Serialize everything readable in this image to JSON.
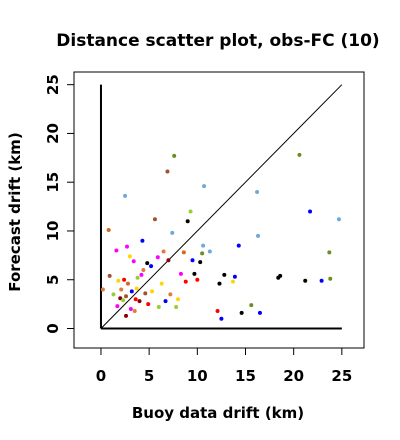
{
  "chart_data": {
    "type": "scatter",
    "title": "Distance scatter plot, obs-FC (10)",
    "xlabel": "Buoy data drift (km)",
    "ylabel": "Forecast drift (km)",
    "xlim": [
      -2.8,
      27.3
    ],
    "ylim": [
      -2.0,
      26.3
    ],
    "xticks": [
      0,
      5,
      10,
      15,
      20,
      25
    ],
    "yticks": [
      0,
      5,
      10,
      15,
      20,
      25
    ],
    "grid": false,
    "legend": "none",
    "reference_line": {
      "x": [
        0,
        25
      ],
      "y": [
        0,
        25
      ]
    },
    "reference_axes": {
      "x_end": 25,
      "y_end": 25
    },
    "points": [
      {
        "x": 0.2,
        "y": 4.0,
        "color": "#e07b39"
      },
      {
        "x": 0.8,
        "y": 10.1,
        "color": "#d2691e"
      },
      {
        "x": 0.9,
        "y": 5.4,
        "color": "#a0522d"
      },
      {
        "x": 1.3,
        "y": 3.5,
        "color": "#9acd32"
      },
      {
        "x": 1.6,
        "y": 8.0,
        "color": "#ff00ff"
      },
      {
        "x": 1.7,
        "y": 2.3,
        "color": "#ff00ff"
      },
      {
        "x": 1.8,
        "y": 4.9,
        "color": "#ffd700"
      },
      {
        "x": 2.0,
        "y": 3.1,
        "color": "#8b0000"
      },
      {
        "x": 2.1,
        "y": 4.0,
        "color": "#e07b39"
      },
      {
        "x": 2.3,
        "y": 2.9,
        "color": "#9acd32"
      },
      {
        "x": 2.4,
        "y": 5.0,
        "color": "#ff0000"
      },
      {
        "x": 2.5,
        "y": 13.6,
        "color": "#6fa8dc"
      },
      {
        "x": 2.6,
        "y": 3.3,
        "color": "#a0522d"
      },
      {
        "x": 2.6,
        "y": 1.3,
        "color": "#8b0000"
      },
      {
        "x": 2.7,
        "y": 8.4,
        "color": "#ff00ff"
      },
      {
        "x": 2.8,
        "y": 4.6,
        "color": "#d2691e"
      },
      {
        "x": 3.0,
        "y": 7.4,
        "color": "#ffd700"
      },
      {
        "x": 3.1,
        "y": 2.0,
        "color": "#ff00ff"
      },
      {
        "x": 3.2,
        "y": 3.8,
        "color": "#0000ff"
      },
      {
        "x": 3.4,
        "y": 6.9,
        "color": "#ff00ff"
      },
      {
        "x": 3.5,
        "y": 1.8,
        "color": "#e07b39"
      },
      {
        "x": 3.6,
        "y": 3.0,
        "color": "#ff0000"
      },
      {
        "x": 3.7,
        "y": 4.1,
        "color": "#ffd700"
      },
      {
        "x": 3.8,
        "y": 5.2,
        "color": "#9acd32"
      },
      {
        "x": 4.0,
        "y": 2.8,
        "color": "#8b0000"
      },
      {
        "x": 4.2,
        "y": 5.5,
        "color": "#ff00ff"
      },
      {
        "x": 4.3,
        "y": 9.0,
        "color": "#0000ff"
      },
      {
        "x": 4.4,
        "y": 6.0,
        "color": "#e07b39"
      },
      {
        "x": 4.6,
        "y": 3.6,
        "color": "#a0522d"
      },
      {
        "x": 4.8,
        "y": 6.7,
        "color": "#000000"
      },
      {
        "x": 4.9,
        "y": 2.5,
        "color": "#ff0000"
      },
      {
        "x": 5.2,
        "y": 6.4,
        "color": "#0000ff"
      },
      {
        "x": 5.3,
        "y": 3.8,
        "color": "#ffd700"
      },
      {
        "x": 5.6,
        "y": 11.2,
        "color": "#a0522d"
      },
      {
        "x": 5.9,
        "y": 7.3,
        "color": "#ff00ff"
      },
      {
        "x": 6.0,
        "y": 2.2,
        "color": "#9acd32"
      },
      {
        "x": 6.3,
        "y": 4.6,
        "color": "#ffd700"
      },
      {
        "x": 6.5,
        "y": 7.9,
        "color": "#e07b39"
      },
      {
        "x": 6.7,
        "y": 2.8,
        "color": "#0000ff"
      },
      {
        "x": 6.9,
        "y": 16.1,
        "color": "#a0522d"
      },
      {
        "x": 7.0,
        "y": 7.0,
        "color": "#8b0000"
      },
      {
        "x": 7.2,
        "y": 3.5,
        "color": "#e07b39"
      },
      {
        "x": 7.4,
        "y": 9.8,
        "color": "#6fa8dc"
      },
      {
        "x": 7.6,
        "y": 17.7,
        "color": "#6b8e23"
      },
      {
        "x": 7.8,
        "y": 2.2,
        "color": "#9acd32"
      },
      {
        "x": 8.0,
        "y": 3.0,
        "color": "#ffd700"
      },
      {
        "x": 8.3,
        "y": 5.6,
        "color": "#ff00ff"
      },
      {
        "x": 8.6,
        "y": 7.8,
        "color": "#d2691e"
      },
      {
        "x": 8.8,
        "y": 4.8,
        "color": "#ff0000"
      },
      {
        "x": 9.0,
        "y": 11.0,
        "color": "#000000"
      },
      {
        "x": 9.3,
        "y": 12.0,
        "color": "#9acd32"
      },
      {
        "x": 9.5,
        "y": 7.0,
        "color": "#0000ff"
      },
      {
        "x": 9.7,
        "y": 5.6,
        "color": "#000000"
      },
      {
        "x": 10.0,
        "y": 5.0,
        "color": "#ff0000"
      },
      {
        "x": 10.3,
        "y": 6.8,
        "color": "#000000"
      },
      {
        "x": 10.5,
        "y": 7.7,
        "color": "#6b8e23"
      },
      {
        "x": 10.6,
        "y": 8.5,
        "color": "#6fa8dc"
      },
      {
        "x": 10.7,
        "y": 14.6,
        "color": "#6fa8dc"
      },
      {
        "x": 11.3,
        "y": 7.9,
        "color": "#6fa8dc"
      },
      {
        "x": 12.1,
        "y": 1.8,
        "color": "#ff0000"
      },
      {
        "x": 12.3,
        "y": 4.6,
        "color": "#000000"
      },
      {
        "x": 12.5,
        "y": 1.0,
        "color": "#0000ff"
      },
      {
        "x": 12.8,
        "y": 5.5,
        "color": "#000000"
      },
      {
        "x": 13.7,
        "y": 4.8,
        "color": "#ffd700"
      },
      {
        "x": 13.9,
        "y": 5.3,
        "color": "#0000ff"
      },
      {
        "x": 14.3,
        "y": 8.5,
        "color": "#0000ff"
      },
      {
        "x": 14.6,
        "y": 1.6,
        "color": "#000000"
      },
      {
        "x": 15.6,
        "y": 2.4,
        "color": "#6b8e23"
      },
      {
        "x": 16.2,
        "y": 14.0,
        "color": "#6fa8dc"
      },
      {
        "x": 16.3,
        "y": 9.5,
        "color": "#6fa8dc"
      },
      {
        "x": 16.5,
        "y": 1.6,
        "color": "#0000ff"
      },
      {
        "x": 18.4,
        "y": 5.2,
        "color": "#000000"
      },
      {
        "x": 18.6,
        "y": 5.4,
        "color": "#000000"
      },
      {
        "x": 20.6,
        "y": 17.8,
        "color": "#6b8e23"
      },
      {
        "x": 21.2,
        "y": 4.9,
        "color": "#000000"
      },
      {
        "x": 21.7,
        "y": 12.0,
        "color": "#0000ff"
      },
      {
        "x": 22.9,
        "y": 4.9,
        "color": "#0000ff"
      },
      {
        "x": 23.7,
        "y": 7.8,
        "color": "#6b8e23"
      },
      {
        "x": 23.8,
        "y": 5.1,
        "color": "#6b8e23"
      },
      {
        "x": 24.7,
        "y": 11.2,
        "color": "#6fa8dc"
      }
    ]
  }
}
